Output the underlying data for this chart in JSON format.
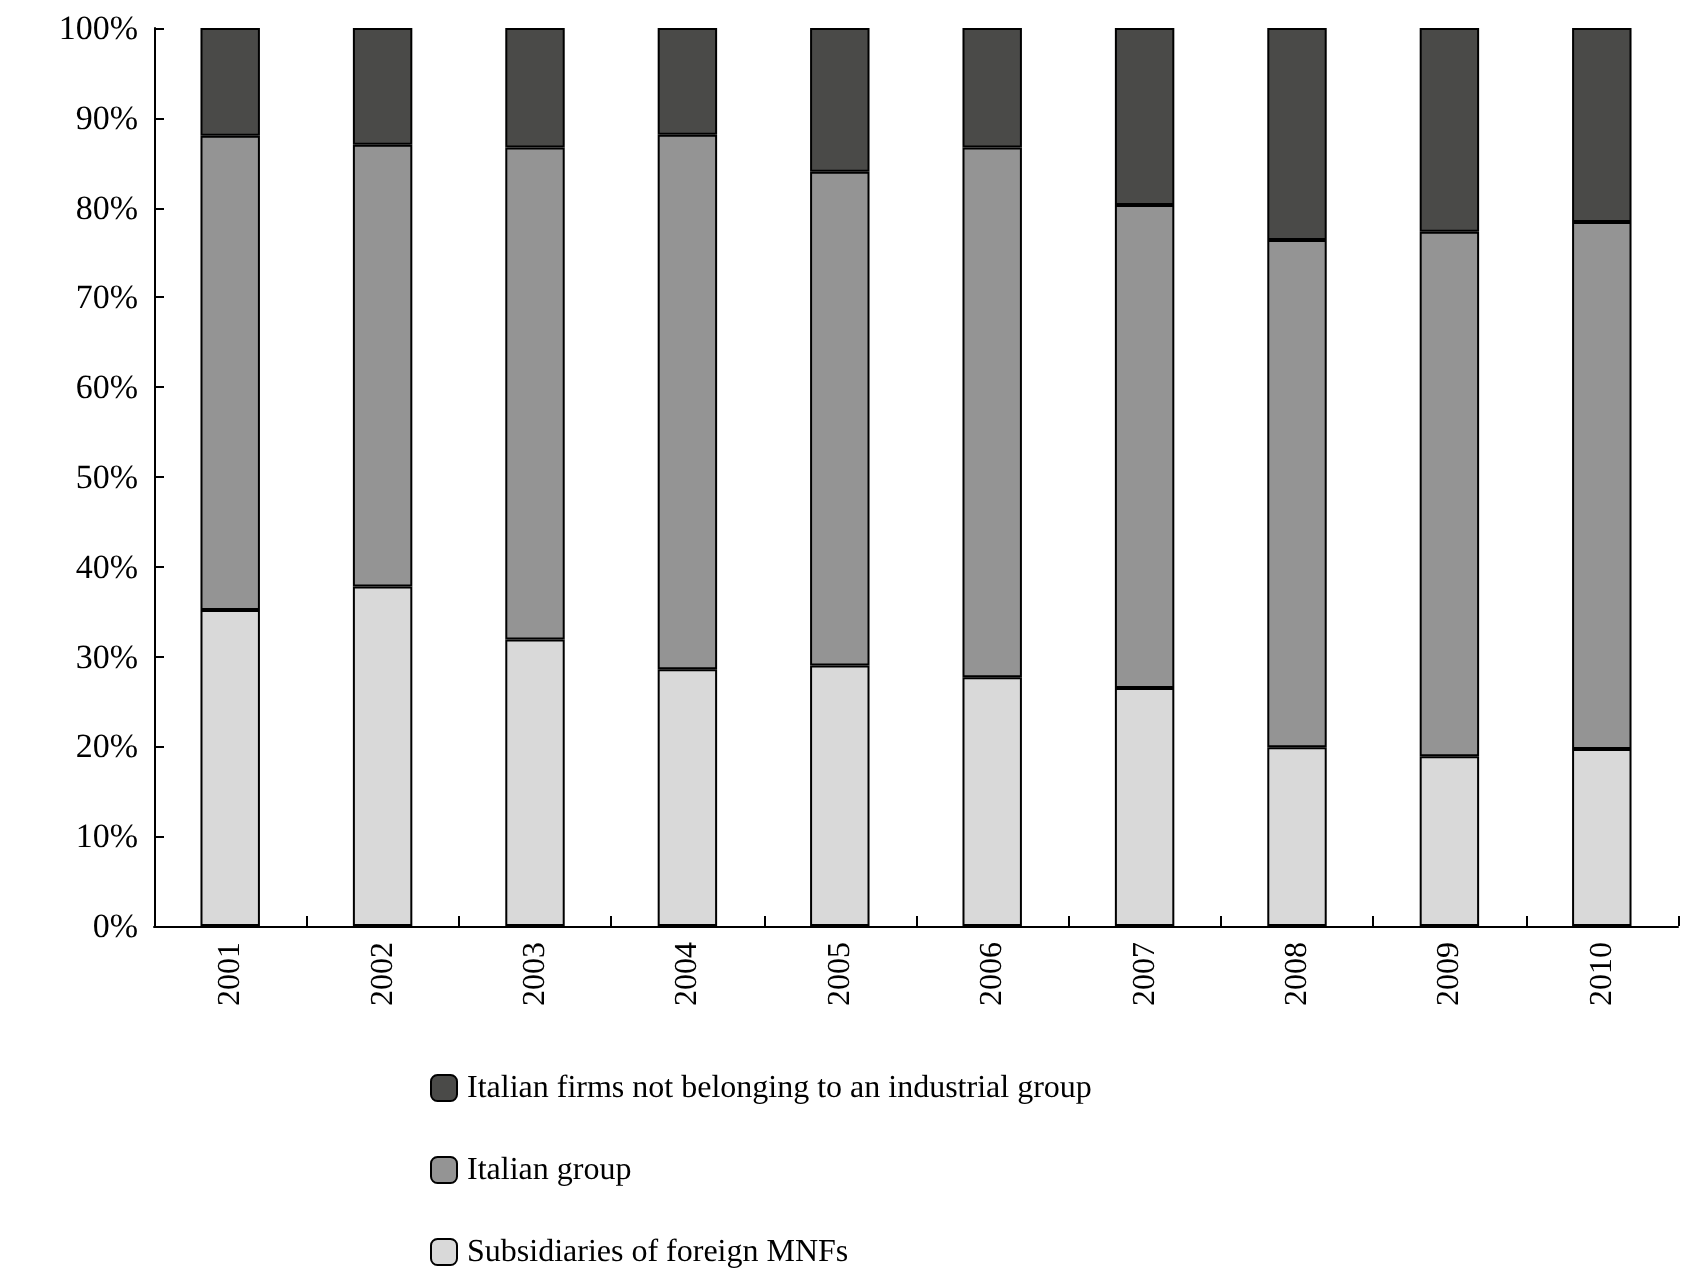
{
  "chart_data": {
    "type": "bar",
    "stacked": true,
    "categories": [
      "2001",
      "2002",
      "2003",
      "2004",
      "2005",
      "2006",
      "2007",
      "2008",
      "2009",
      "2010"
    ],
    "series": [
      {
        "name": "Subsidiaries of foreign MNFs",
        "color": "#d9d9d9",
        "values": [
          35.2,
          37.8,
          31.9,
          28.6,
          29.0,
          27.7,
          26.5,
          19.9,
          18.9,
          19.7
        ]
      },
      {
        "name": "Italian group",
        "color": "#949494",
        "values": [
          52.8,
          49.2,
          54.8,
          59.5,
          55.0,
          59.0,
          53.8,
          56.5,
          58.4,
          58.7
        ]
      },
      {
        "name": "Italian firms not belonging to an industrial group",
        "color": "#4a4a48",
        "values": [
          12.0,
          13.0,
          13.3,
          11.9,
          16.0,
          13.3,
          19.7,
          23.6,
          22.7,
          21.6
        ]
      }
    ],
    "ylim": [
      0,
      100
    ],
    "yticks": [
      {
        "value": 0,
        "label": "0%"
      },
      {
        "value": 10,
        "label": "10%"
      },
      {
        "value": 20,
        "label": "20%"
      },
      {
        "value": 30,
        "label": "30%"
      },
      {
        "value": 40,
        "label": "40%"
      },
      {
        "value": 50,
        "label": "50%"
      },
      {
        "value": 60,
        "label": "60%"
      },
      {
        "value": 70,
        "label": "70%"
      },
      {
        "value": 80,
        "label": "80%"
      },
      {
        "value": 90,
        "label": "90%"
      },
      {
        "value": 100,
        "label": "100%"
      }
    ],
    "grid": false,
    "legend": "bottom"
  }
}
